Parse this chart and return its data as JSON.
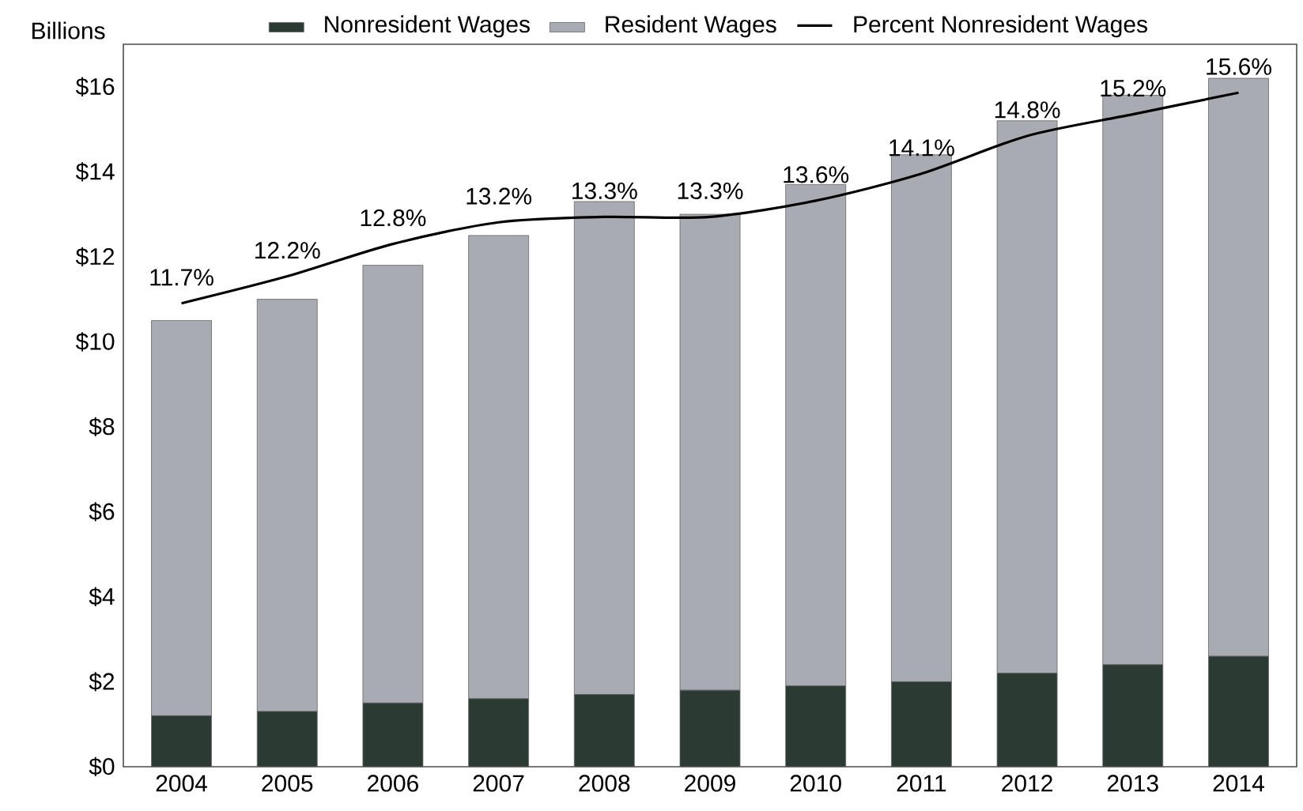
{
  "chart_data": {
    "type": "bar",
    "stacked": true,
    "ylabel": "Billions",
    "legend": "top",
    "categories": [
      "2004",
      "2005",
      "2006",
      "2007",
      "2008",
      "2009",
      "2010",
      "2011",
      "2012",
      "2013",
      "2014"
    ],
    "ylim": [
      0,
      17
    ],
    "yticks": [
      {
        "value": 0,
        "label": "$0"
      },
      {
        "value": 2,
        "label": "$2"
      },
      {
        "value": 4,
        "label": "$4"
      },
      {
        "value": 6,
        "label": "$6"
      },
      {
        "value": 8,
        "label": "$8"
      },
      {
        "value": 10,
        "label": "$10"
      },
      {
        "value": 12,
        "label": "$12"
      },
      {
        "value": 14,
        "label": "$14"
      },
      {
        "value": 16,
        "label": "$16"
      }
    ],
    "series": [
      {
        "name": "Nonresident Wages",
        "color": "#2b3a33",
        "values": [
          1.2,
          1.3,
          1.5,
          1.6,
          1.7,
          1.8,
          1.9,
          2.0,
          2.2,
          2.4,
          2.6
        ]
      },
      {
        "name": "Resident Wages",
        "color": "#a9abb3",
        "values": [
          9.3,
          9.7,
          10.3,
          10.9,
          11.6,
          11.2,
          11.8,
          12.4,
          13.0,
          13.4,
          13.6
        ]
      },
      {
        "name": "Percent Nonresident Wages",
        "type": "line",
        "axis": "y2",
        "color": "#000000",
        "values": [
          11.7,
          12.2,
          12.8,
          13.2,
          13.3,
          13.3,
          13.6,
          14.1,
          14.8,
          15.2,
          15.6
        ],
        "value_labels": [
          "11.7%",
          "12.2%",
          "12.8%",
          "13.2%",
          "13.3%",
          "13.3%",
          "13.6%",
          "14.1%",
          "14.8%",
          "15.2%",
          "15.6%"
        ]
      }
    ]
  }
}
